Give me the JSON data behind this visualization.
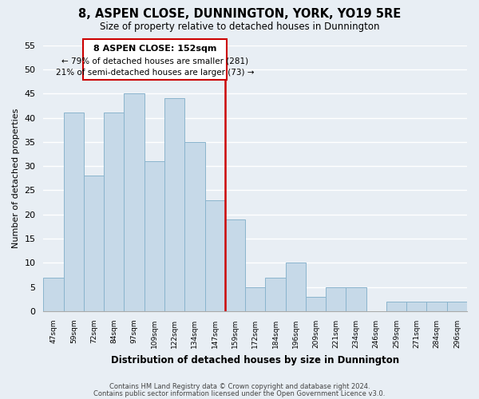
{
  "title": "8, ASPEN CLOSE, DUNNINGTON, YORK, YO19 5RE",
  "subtitle": "Size of property relative to detached houses in Dunnington",
  "xlabel": "Distribution of detached houses by size in Dunnington",
  "ylabel": "Number of detached properties",
  "bin_labels": [
    "47sqm",
    "59sqm",
    "72sqm",
    "84sqm",
    "97sqm",
    "109sqm",
    "122sqm",
    "134sqm",
    "147sqm",
    "159sqm",
    "172sqm",
    "184sqm",
    "196sqm",
    "209sqm",
    "221sqm",
    "234sqm",
    "246sqm",
    "259sqm",
    "271sqm",
    "284sqm",
    "296sqm"
  ],
  "bar_heights": [
    7,
    41,
    28,
    41,
    45,
    31,
    44,
    35,
    23,
    19,
    5,
    7,
    10,
    3,
    5,
    5,
    0,
    2,
    2,
    2,
    2
  ],
  "bar_color": "#c6d9e8",
  "bar_edge_color": "#8ab4cd",
  "vline_color": "#cc0000",
  "ylim": [
    0,
    55
  ],
  "yticks": [
    0,
    5,
    10,
    15,
    20,
    25,
    30,
    35,
    40,
    45,
    50,
    55
  ],
  "annotation_text1": "8 ASPEN CLOSE: 152sqm",
  "annotation_text2": "← 79% of detached houses are smaller (281)",
  "annotation_text3": "21% of semi-detached houses are larger (73) →",
  "footer1": "Contains HM Land Registry data © Crown copyright and database right 2024.",
  "footer2": "Contains public sector information licensed under the Open Government Licence v3.0.",
  "background_color": "#e8eef4",
  "grid_color": "#ffffff",
  "annotation_box_color": "#ffffff",
  "annotation_box_edge_color": "#cc0000"
}
